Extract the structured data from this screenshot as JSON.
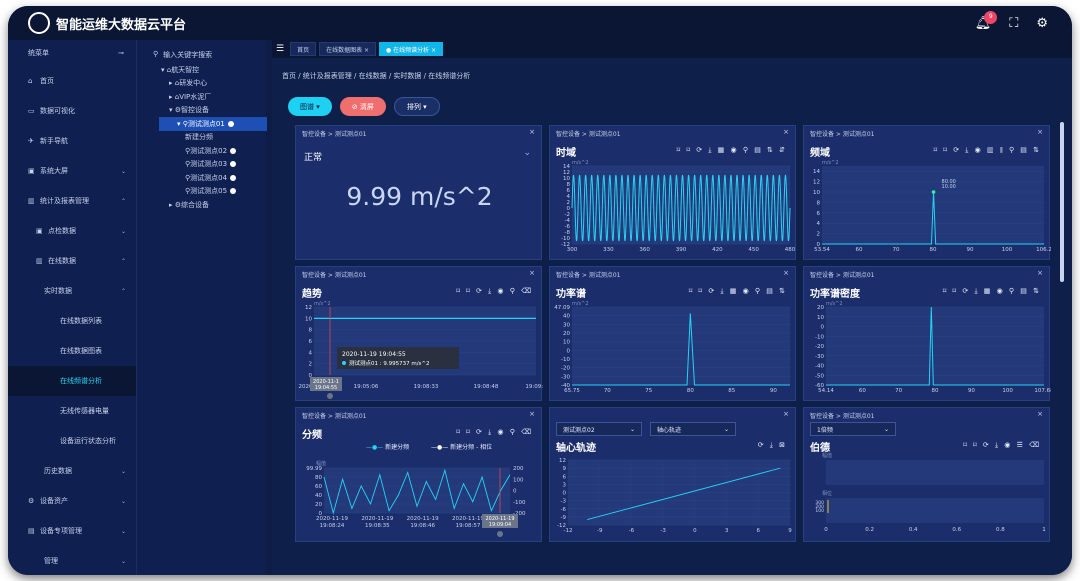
{
  "header": {
    "title": "智能运维大数据云平台",
    "notif_count": "9"
  },
  "sidebar": {
    "menu_label": "统菜单",
    "items": [
      {
        "label": "首页",
        "icon": "home-icon",
        "glyph": "⌂",
        "level": 0,
        "arrow": ""
      },
      {
        "label": "数据可视化",
        "icon": "monitor-icon",
        "glyph": "▭",
        "level": 0,
        "arrow": ""
      },
      {
        "label": "新手导航",
        "icon": "guide-icon",
        "glyph": "✈",
        "level": 0,
        "arrow": ""
      },
      {
        "label": "系统大屏",
        "icon": "screen-icon",
        "glyph": "▣",
        "level": 0,
        "arrow": "⌄"
      },
      {
        "label": "统计及报表管理",
        "icon": "bar-chart-icon",
        "glyph": "▥",
        "level": 0,
        "arrow": "⌃"
      },
      {
        "label": "点检数据",
        "icon": "check-icon",
        "glyph": "▣",
        "level": 1,
        "arrow": "⌄"
      },
      {
        "label": "在线数据",
        "icon": "data-icon",
        "glyph": "▥",
        "level": 1,
        "arrow": "⌃"
      },
      {
        "label": "实时数据",
        "icon": "",
        "glyph": "",
        "level": 2,
        "arrow": "⌃"
      },
      {
        "label": "在线数据列表",
        "icon": "",
        "glyph": "",
        "level": 3,
        "arrow": ""
      },
      {
        "label": "在线数据图表",
        "icon": "",
        "glyph": "",
        "level": 3,
        "arrow": ""
      },
      {
        "label": "在线频谱分析",
        "icon": "",
        "glyph": "",
        "level": 3,
        "arrow": "",
        "active": true
      },
      {
        "label": "无线传感器电量",
        "icon": "",
        "glyph": "",
        "level": 3,
        "arrow": ""
      },
      {
        "label": "设备运行状态分析",
        "icon": "",
        "glyph": "",
        "level": 3,
        "arrow": ""
      },
      {
        "label": "历史数据",
        "icon": "",
        "glyph": "",
        "level": 2,
        "arrow": "⌄"
      },
      {
        "label": "设备资产",
        "icon": "gear-icon",
        "glyph": "⚙",
        "level": 0,
        "arrow": "⌄"
      },
      {
        "label": "设备专项管理",
        "icon": "folder-icon",
        "glyph": "▤",
        "level": 0,
        "arrow": "⌄"
      },
      {
        "label": "管理",
        "icon": "",
        "glyph": "",
        "level": 2,
        "arrow": "⌄"
      }
    ]
  },
  "tree": {
    "search_placeholder": "输入关键字搜索",
    "nodes": [
      {
        "label": "航天智控",
        "indent": 0,
        "prefix": "▾ ⌂",
        "sel": false,
        "dot": false
      },
      {
        "label": "研发中心",
        "indent": 1,
        "prefix": "▸ ⌂",
        "sel": false,
        "dot": false
      },
      {
        "label": "VIP水泥厂",
        "indent": 1,
        "prefix": "▸ ⌂",
        "sel": false,
        "dot": false
      },
      {
        "label": "智控设备",
        "indent": 1,
        "prefix": "▾ ⚙",
        "sel": false,
        "dot": false
      },
      {
        "label": "测试测点01",
        "indent": 2,
        "prefix": "▾ ⚲",
        "sel": true,
        "dot": true
      },
      {
        "label": "新建分频",
        "indent": 3,
        "prefix": "",
        "sel": false,
        "dot": false
      },
      {
        "label": "测试测点02",
        "indent": 3,
        "prefix": "⚲",
        "sel": false,
        "dot": true
      },
      {
        "label": "测试测点03",
        "indent": 3,
        "prefix": "⚲",
        "sel": false,
        "dot": true
      },
      {
        "label": "测试测点04",
        "indent": 3,
        "prefix": "⚲",
        "sel": false,
        "dot": true
      },
      {
        "label": "测试测点05",
        "indent": 3,
        "prefix": "⚲",
        "sel": false,
        "dot": true
      },
      {
        "label": "综合设备",
        "indent": 1,
        "prefix": "▸ ⚙",
        "sel": false,
        "dot": false
      }
    ]
  },
  "tabs": [
    {
      "label": "首页",
      "active": false
    },
    {
      "label": "在线数据图表 ×",
      "active": false
    },
    {
      "label": "● 在线频谱分析 ×",
      "active": true
    }
  ],
  "breadcrumb": "首页 / 统计及报表管理 / 在线数据 / 实时数据 / 在线频谱分析",
  "toolbar": {
    "chart": "图谱 ▾",
    "clear": "⊘ 清屏",
    "sort": "排列 ▾"
  },
  "panels": {
    "value": {
      "bc": "智控设备 > 测试测点01",
      "status": "正常",
      "value": "9.99 m/s^2"
    },
    "time": {
      "bc": "智控设备 > 测试测点01",
      "title": "时域",
      "icons": "⌑ ⌑ ⟳ ⤓ ▦ ◉ ⚲ ▤ ⇅ ⇵"
    },
    "freq": {
      "bc": "智控设备 > 测试测点01",
      "title": "频域",
      "icons": "⌑ ⌑ ⟳ ⤓ ◉ ▥ ⫴ ⚲ ▤ ⇅"
    },
    "trend": {
      "bc": "智控设备 > 测试测点01",
      "title": "趋势",
      "icons": "⌑ ⌑ ⟳ ⤓ ◉ ⚲ ⌫"
    },
    "power": {
      "bc": "智控设备 > 测试测点01",
      "title": "功率谱",
      "icons": "⌑ ⌑ ⟳ ⤓ ▦ ◉ ⚲ ▤ ⇅"
    },
    "psd": {
      "bc": "智控设备 > 测试测点01",
      "title": "功率谱密度",
      "icons": "⌑ ⌑ ⟳ ⤓ ▦ ◉ ⚲ ▤ ⇅"
    },
    "split": {
      "bc": "智控设备 > 测试测点01",
      "title": "分频",
      "icons": "⌑ ⌑ ⟳ ⤓ ◉ ⚲ ⌫",
      "legend1": "新建分频",
      "legend2": "新建分频 - 相位"
    },
    "orbit": {
      "title": "轴心轨迹",
      "sel1": "测试测点02",
      "sel2": "轴心轨迹",
      "icons": "⟳ ⤓ ⊠"
    },
    "bode": {
      "bc": "智控设备 > 测试测点01",
      "title": "伯德",
      "sel": "1倍频",
      "icons": "⌑ ⌑ ⟳ ⤓ ◉ ☰ ⌫",
      "label1": "幅值",
      "label2": "相位"
    }
  },
  "chart_data": [
    {
      "type": "line",
      "title": "时域",
      "ylabel": "m/s^2",
      "x_ticks": [
        "300",
        "330",
        "360",
        "390",
        "420",
        "450",
        "480"
      ],
      "y_ticks": [
        "14",
        "12",
        "10",
        "8",
        "6",
        "4",
        "2",
        "0",
        "-2",
        "-4",
        "-6",
        "-8",
        "-10",
        "-12"
      ],
      "xlim": [
        292,
        482
      ],
      "ylim": [
        -12,
        14
      ],
      "series": [
        {
          "waveform": "sine",
          "amplitude": 11,
          "cycles": 36
        }
      ]
    },
    {
      "type": "line",
      "title": "频域",
      "ylabel": "m/s^2",
      "x_ticks": [
        "53.54",
        "60",
        "70",
        "80",
        "90",
        "100",
        "106.2"
      ],
      "y_ticks": [
        "14",
        "12",
        "10",
        "8",
        "6",
        "4",
        "2",
        "0"
      ],
      "xlim": [
        53.54,
        106.2
      ],
      "ylim": [
        0,
        15
      ],
      "series": [
        {
          "points": [
            [
              53.54,
              0
            ],
            [
              79.5,
              0
            ],
            [
              80,
              10
            ],
            [
              80.5,
              0
            ],
            [
              106.2,
              0
            ]
          ]
        }
      ],
      "annotations": [
        "80.00",
        "10.00"
      ]
    },
    {
      "type": "line",
      "title": "趋势",
      "ylabel": "m/s^2",
      "x_ticks": [
        "2020-11",
        "19:05:06",
        "19:08:33",
        "19:08:48",
        "19:09:0"
      ],
      "y_ticks": [
        "12",
        "10",
        "8",
        "6",
        "4",
        "2",
        "0"
      ],
      "ylim": [
        0,
        12
      ],
      "series": [
        {
          "name": "测试测点01",
          "values": [
            9.995737
          ]
        }
      ],
      "tooltip_time": "2020-11-19 19:04:55",
      "tooltip_value": "测试测点01 : 9.995737 m/s^2",
      "axis_pointer_a": "2020-11-1",
      "axis_pointer_b": "19:04:55"
    },
    {
      "type": "line",
      "title": "功率谱",
      "ylabel": "m/s^2",
      "x_ticks": [
        "65.75",
        "70",
        "75",
        "80",
        "85",
        "90"
      ],
      "y_ticks": [
        "47.09",
        "40",
        "30",
        "20",
        "10",
        "0",
        "-10",
        "-20",
        "-30",
        "-40"
      ],
      "xlim": [
        65.75,
        92
      ],
      "ylim": [
        -40,
        47.09
      ],
      "series": [
        {
          "points": [
            [
              65.75,
              -40
            ],
            [
              79.6,
              -40
            ],
            [
              80,
              40
            ],
            [
              80.5,
              -40
            ],
            [
              92,
              -40
            ]
          ]
        }
      ]
    },
    {
      "type": "line",
      "title": "功率谱密度",
      "ylabel": "m/s^2",
      "x_ticks": [
        "54.14",
        "60",
        "70",
        "80",
        "90",
        "100",
        "107.68"
      ],
      "y_ticks": [
        "20",
        "10",
        "0",
        "-10",
        "-20",
        "-30",
        "-40",
        "-50",
        "-60"
      ],
      "xlim": [
        54.14,
        107.68
      ],
      "ylim": [
        -60,
        20
      ],
      "series": [
        {
          "points": [
            [
              54.14,
              -60
            ],
            [
              79.5,
              -60
            ],
            [
              80,
              20
            ],
            [
              80.5,
              -60
            ],
            [
              107.68,
              -60
            ]
          ]
        }
      ]
    },
    {
      "type": "line",
      "title": "分频",
      "ylabel": "幅值",
      "y_ticks": [
        "99.99",
        "80",
        "60",
        "40",
        "20",
        "0"
      ],
      "y2_ticks": [
        "200",
        "100",
        "0",
        "-100",
        "-200"
      ],
      "x_ticks": [
        "2020-11-19\n19:08:24",
        "2020-11-19\n19:08:35",
        "2020-11-19\n19:08:46",
        "2020-11-19\n19:08:57"
      ],
      "ylim": [
        0,
        100
      ],
      "series": [
        {
          "name": "新建分频",
          "values": [
            80,
            0,
            75,
            10,
            60,
            20,
            85,
            5,
            40,
            90,
            15,
            70,
            30,
            95,
            10,
            65,
            25,
            80,
            5,
            50,
            85
          ]
        }
      ],
      "axis_pointer_a": "2020-11-19",
      "axis_pointer_b": "19:09:04"
    },
    {
      "type": "line",
      "title": "轴心轨迹",
      "x_ticks": [
        "-12",
        "-9",
        "-6",
        "-3",
        "0",
        "3",
        "6",
        "9"
      ],
      "y_ticks": [
        "12",
        "9",
        "6",
        "3",
        "0",
        "-3",
        "-6",
        "-9",
        "-12"
      ],
      "xlim": [
        -12,
        11
      ],
      "ylim": [
        -12,
        12
      ],
      "series": [
        {
          "points": [
            [
              -10,
              -10
            ],
            [
              10,
              9
            ]
          ]
        }
      ]
    },
    {
      "type": "bar",
      "title": "伯德",
      "x_ticks": [
        "0",
        "0.2",
        "0.4",
        "0.6",
        "0.8",
        "1"
      ],
      "y_ticks": [
        "300",
        "200",
        "100"
      ],
      "xlim": [
        0,
        1
      ],
      "series": [
        {
          "name": "幅值",
          "values": []
        },
        {
          "name": "相位",
          "values": []
        }
      ]
    }
  ]
}
